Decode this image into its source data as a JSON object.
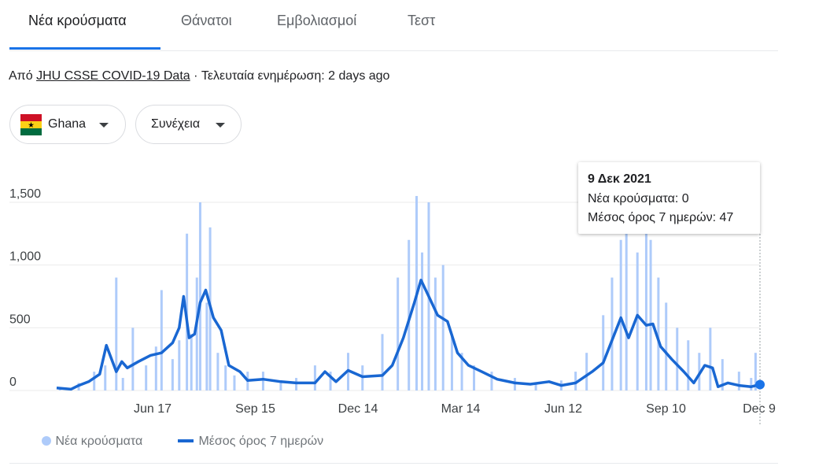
{
  "tabs": [
    {
      "label": "Νέα κρούσματα",
      "active": true
    },
    {
      "label": "Θάνατοι",
      "active": false
    },
    {
      "label": "Εμβολιασμοί",
      "active": false
    },
    {
      "label": "Τεστ",
      "active": false
    }
  ],
  "source": {
    "prefix": "Από",
    "link": "JHU CSSE COVID-19 Data",
    "separator": "·",
    "updated": "Τελευταία ενημέρωση: 2 days ago"
  },
  "filters": {
    "country": {
      "label": "Ghana",
      "icon": "ghana-flag-icon"
    },
    "mode": {
      "label": "Συνέχεια"
    }
  },
  "tooltip": {
    "date": "9 Δεκ 2021",
    "cases": "Νέα κρούσματα: 0",
    "average": "Μέσος όρος 7 ημερών: 47"
  },
  "legend": {
    "cases": "Νέα κρούσματα",
    "average": "Μέσος όρος 7 ημερών"
  },
  "colors": {
    "accent": "#1a73e8",
    "bars": "#aecbfa",
    "line": "#1967d2"
  },
  "chart_data": {
    "type": "bar",
    "grid": true,
    "ylim": [
      0,
      1600
    ],
    "y_ticks": [
      "0",
      "500",
      "1,000",
      "1,500"
    ],
    "x_ticks": [
      "Jun 17",
      "Sep 15",
      "Dec 14",
      "Mar 14",
      "Jun 12",
      "Sep 10",
      "Dec 9"
    ],
    "x_range": [
      "2020-03-12",
      "2021-12-09"
    ],
    "series": [
      {
        "name": "Νέα κρούσματα",
        "kind": "bar",
        "x": [
          "2020-03-15",
          "2020-04-01",
          "2020-04-15",
          "2020-04-25",
          "2020-05-05",
          "2020-05-11",
          "2020-05-20",
          "2020-06-01",
          "2020-06-10",
          "2020-06-15",
          "2020-06-25",
          "2020-07-01",
          "2020-07-08",
          "2020-07-12",
          "2020-07-17",
          "2020-07-20",
          "2020-07-26",
          "2020-07-29",
          "2020-08-05",
          "2020-08-12",
          "2020-08-20",
          "2020-09-01",
          "2020-09-15",
          "2020-10-01",
          "2020-10-15",
          "2020-11-01",
          "2020-11-15",
          "2020-12-01",
          "2020-12-14",
          "2021-01-01",
          "2021-01-15",
          "2021-01-25",
          "2021-02-01",
          "2021-02-06",
          "2021-02-12",
          "2021-02-18",
          "2021-02-25",
          "2021-03-05",
          "2021-03-14",
          "2021-03-25",
          "2021-04-10",
          "2021-05-01",
          "2021-05-20",
          "2021-06-12",
          "2021-06-25",
          "2021-07-05",
          "2021-07-20",
          "2021-07-28",
          "2021-08-05",
          "2021-08-10",
          "2021-08-20",
          "2021-08-28",
          "2021-09-01",
          "2021-09-08",
          "2021-09-15",
          "2021-09-25",
          "2021-10-05",
          "2021-10-15",
          "2021-10-25",
          "2021-11-05",
          "2021-11-20",
          "2021-12-01",
          "2021-12-05",
          "2021-12-09"
        ],
        "values": [
          20,
          60,
          150,
          200,
          900,
          100,
          500,
          200,
          350,
          800,
          250,
          400,
          1250,
          450,
          900,
          1500,
          700,
          1300,
          300,
          200,
          120,
          150,
          150,
          60,
          100,
          200,
          150,
          300,
          200,
          450,
          900,
          1200,
          1550,
          1100,
          1500,
          900,
          1000,
          450,
          300,
          200,
          150,
          100,
          50,
          80,
          150,
          300,
          600,
          900,
          1200,
          1300,
          1100,
          1500,
          1200,
          900,
          700,
          500,
          400,
          300,
          500,
          250,
          150,
          100,
          300,
          0
        ]
      },
      {
        "name": "Μέσος όρος 7 ημερών",
        "kind": "line",
        "x": [
          "2020-03-12",
          "2020-03-25",
          "2020-04-01",
          "2020-04-10",
          "2020-04-20",
          "2020-04-26",
          "2020-05-05",
          "2020-05-10",
          "2020-05-15",
          "2020-05-25",
          "2020-06-05",
          "2020-06-15",
          "2020-06-25",
          "2020-07-01",
          "2020-07-05",
          "2020-07-10",
          "2020-07-15",
          "2020-07-20",
          "2020-07-25",
          "2020-08-01",
          "2020-08-08",
          "2020-08-15",
          "2020-08-25",
          "2020-09-01",
          "2020-09-15",
          "2020-10-01",
          "2020-10-15",
          "2020-11-01",
          "2020-11-10",
          "2020-11-20",
          "2020-12-01",
          "2020-12-14",
          "2021-01-01",
          "2021-01-10",
          "2021-01-20",
          "2021-01-30",
          "2021-02-05",
          "2021-02-12",
          "2021-02-20",
          "2021-03-01",
          "2021-03-10",
          "2021-03-20",
          "2021-04-01",
          "2021-04-15",
          "2021-05-01",
          "2021-05-15",
          "2021-06-01",
          "2021-06-12",
          "2021-06-25",
          "2021-07-10",
          "2021-07-20",
          "2021-07-28",
          "2021-08-05",
          "2021-08-12",
          "2021-08-20",
          "2021-08-28",
          "2021-09-03",
          "2021-09-10",
          "2021-09-20",
          "2021-10-01",
          "2021-10-10",
          "2021-10-20",
          "2021-10-27",
          "2021-11-01",
          "2021-11-10",
          "2021-11-20",
          "2021-12-01",
          "2021-12-09"
        ],
        "values": [
          20,
          10,
          40,
          70,
          130,
          360,
          150,
          230,
          180,
          230,
          280,
          300,
          380,
          500,
          750,
          420,
          450,
          700,
          800,
          580,
          480,
          200,
          150,
          80,
          90,
          70,
          60,
          60,
          150,
          70,
          160,
          110,
          120,
          200,
          420,
          700,
          880,
          750,
          600,
          550,
          300,
          200,
          150,
          90,
          60,
          50,
          70,
          40,
          60,
          150,
          220,
          400,
          580,
          420,
          600,
          520,
          530,
          350,
          250,
          150,
          60,
          200,
          180,
          30,
          60,
          40,
          30,
          47
        ]
      }
    ]
  }
}
